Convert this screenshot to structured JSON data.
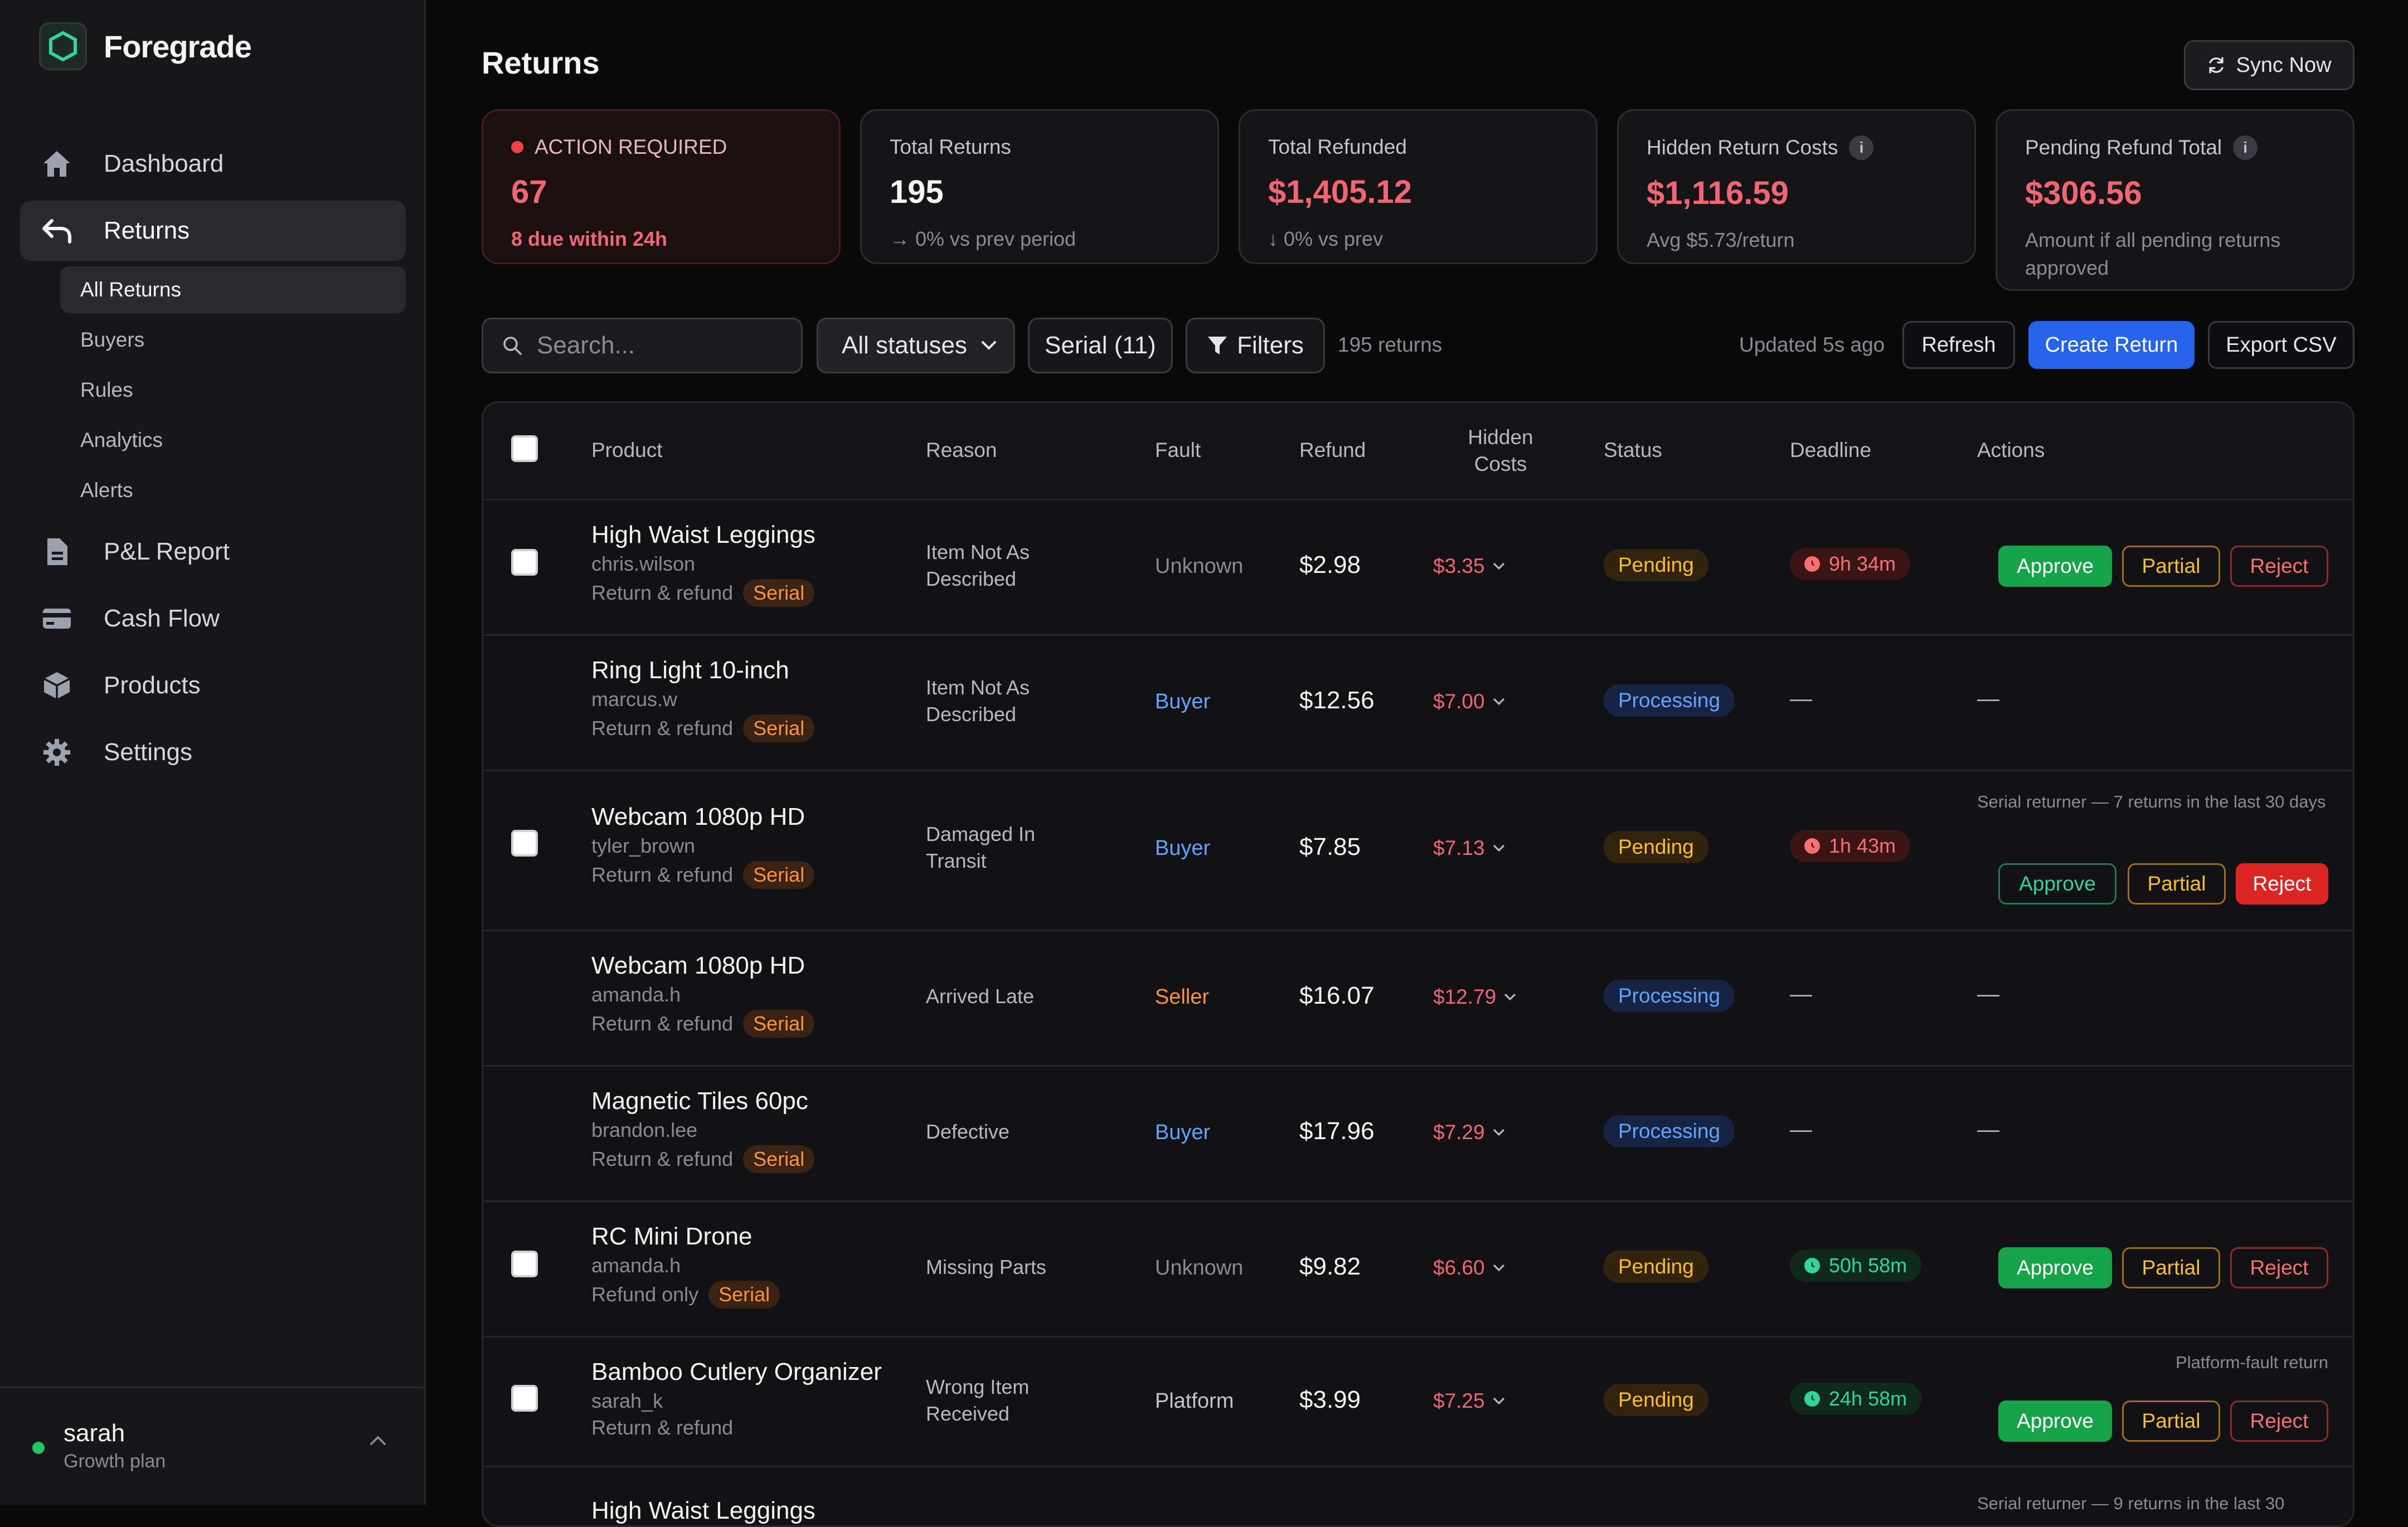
{
  "brand": {
    "name": "Foregrade"
  },
  "nav": [
    {
      "label": "Dashboard",
      "icon": "home-icon"
    },
    {
      "label": "Returns",
      "icon": "return-arrow-icon"
    },
    {
      "label": "P&L Report",
      "icon": "document-icon"
    },
    {
      "label": "Cash Flow",
      "icon": "credit-card-icon"
    },
    {
      "label": "Products",
      "icon": "box-icon"
    },
    {
      "label": "Settings",
      "icon": "gear-icon"
    }
  ],
  "subnav": [
    "All Returns",
    "Buyers",
    "Rules",
    "Analytics",
    "Alerts"
  ],
  "user": {
    "name": "sarah",
    "plan": "Growth plan"
  },
  "page": {
    "title": "Returns",
    "sync_label": "Sync Now"
  },
  "cards": [
    {
      "label": "ACTION REQUIRED",
      "value": "67",
      "sub": "8 due within 24h"
    },
    {
      "label": "Total Returns",
      "value": "195",
      "sub": "→ 0% vs prev period"
    },
    {
      "label": "Total Refunded",
      "value": "$1,405.12",
      "sub": "↓ 0% vs prev"
    },
    {
      "label": "Hidden Return Costs",
      "value": "$1,116.59",
      "sub": "Avg $5.73/return"
    },
    {
      "label": "Pending Refund Total",
      "value": "$306.56",
      "sub": "Amount if all pending returns approved"
    }
  ],
  "toolbar": {
    "search_placeholder": "Search...",
    "status_filter": "All statuses",
    "serial_filter": "Serial (11)",
    "filters_label": "Filters",
    "count": "195 returns",
    "updated": "Updated 5s ago",
    "refresh": "Refresh",
    "create": "Create Return",
    "export": "Export CSV"
  },
  "table": {
    "headers": {
      "product": "Product",
      "reason": "Reason",
      "fault": "Fault",
      "refund": "Refund",
      "hidden_costs": "Hidden Costs",
      "status": "Status",
      "deadline": "Deadline",
      "actions": "Actions"
    },
    "actions": {
      "approve": "Approve",
      "partial": "Partial",
      "reject": "Reject"
    },
    "serial_tag": "Serial",
    "dash": "—",
    "rows": [
      {
        "product": "High Waist Leggings",
        "user": "chris.wilson",
        "type": "Return & refund",
        "reason": "Item Not As Described",
        "fault": "Unknown",
        "refund": "$2.98",
        "hidden": "$3.35",
        "status": "Pending",
        "deadline": "9h 34m",
        "note": ""
      },
      {
        "product": "Ring Light 10-inch",
        "user": "marcus.w",
        "type": "Return & refund",
        "reason": "Item Not As Described",
        "fault": "Buyer",
        "refund": "$12.56",
        "hidden": "$7.00",
        "status": "Processing",
        "deadline": "—",
        "note": ""
      },
      {
        "product": "Webcam 1080p HD",
        "user": "tyler_brown",
        "type": "Return & refund",
        "reason": "Damaged In Transit",
        "fault": "Buyer",
        "refund": "$7.85",
        "hidden": "$7.13",
        "status": "Pending",
        "deadline": "1h 43m",
        "note": "Serial returner — 7 returns in the last 30 days"
      },
      {
        "product": "Webcam 1080p HD",
        "user": "amanda.h",
        "type": "Return & refund",
        "reason": "Arrived Late",
        "fault": "Seller",
        "refund": "$16.07",
        "hidden": "$12.79",
        "status": "Processing",
        "deadline": "—",
        "note": ""
      },
      {
        "product": "Magnetic Tiles 60pc",
        "user": "brandon.lee",
        "type": "Return & refund",
        "reason": "Defective",
        "fault": "Buyer",
        "refund": "$17.96",
        "hidden": "$7.29",
        "status": "Processing",
        "deadline": "—",
        "note": ""
      },
      {
        "product": "RC Mini Drone",
        "user": "amanda.h",
        "type": "Refund only",
        "reason": "Missing Parts",
        "fault": "Unknown",
        "refund": "$9.82",
        "hidden": "$6.60",
        "status": "Pending",
        "deadline": "50h 58m",
        "note": ""
      },
      {
        "product": "Bamboo Cutlery Organizer",
        "user": "sarah_k",
        "type": "Return & refund",
        "reason": "Wrong Item Received",
        "fault": "Platform",
        "refund": "$3.99",
        "hidden": "$7.25",
        "status": "Pending",
        "deadline": "24h 58m",
        "note": "Platform-fault return"
      },
      {
        "product": "High Waist Leggings",
        "user": "",
        "type": "",
        "reason": "",
        "fault": "",
        "refund": "",
        "hidden": "",
        "status": "",
        "deadline": "",
        "note": "Serial returner — 9 returns in the last 30"
      }
    ]
  },
  "colors": {
    "accent": "#2563eb",
    "approve": "#16a34a",
    "reject": "#dc2626",
    "pending": "#fbbf24",
    "processing": "#60a5fa",
    "alert": "#f16672"
  }
}
